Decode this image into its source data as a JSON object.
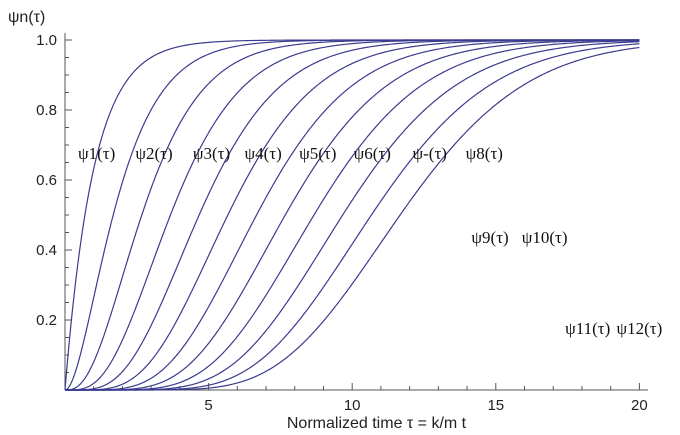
{
  "chart_data": {
    "type": "line",
    "title": "",
    "xlabel": "Normalized time τ = k/m t",
    "ylabel": "ψn(τ)",
    "xlim": [
      0,
      20.3
    ],
    "ylim": [
      0,
      1.02
    ],
    "xticks": [
      5,
      10,
      15,
      20
    ],
    "yticks": [
      0.2,
      0.4,
      0.6,
      0.8,
      1.0
    ],
    "xtick_labels": [
      "5",
      "10",
      "15",
      "20"
    ],
    "ytick_labels": [
      "0.2",
      "0.4",
      "0.6",
      "0.8",
      "1.0"
    ],
    "grid": false,
    "legend": "none",
    "line_color": "#3b3b8f",
    "model": "psi_n(tau) = regularized lower incomplete gamma P(n, tau), n = 1..12",
    "series": [
      {
        "name": "ψ1(τ)",
        "n": 1,
        "label_x": 1.1,
        "label_y": 0.66
      },
      {
        "name": "ψ2(τ)",
        "n": 2,
        "label_x": 3.1,
        "label_y": 0.66
      },
      {
        "name": "ψ3(τ)",
        "n": 3,
        "label_x": 5.1,
        "label_y": 0.66
      },
      {
        "name": "ψ4(τ)",
        "n": 4,
        "label_x": 6.9,
        "label_y": 0.66
      },
      {
        "name": "ψ5(τ)",
        "n": 5,
        "label_x": 8.8,
        "label_y": 0.66
      },
      {
        "name": "ψ6(τ)",
        "n": 6,
        "label_x": 10.7,
        "label_y": 0.66
      },
      {
        "name": "ψ-(τ)",
        "n": 7,
        "label_x": 12.7,
        "label_y": 0.66
      },
      {
        "name": "ψ8(τ)",
        "n": 8,
        "label_x": 14.6,
        "label_y": 0.66
      },
      {
        "name": "ψ9(τ)",
        "n": 9,
        "label_x": 14.8,
        "label_y": 0.42
      },
      {
        "name": "ψ10(τ)",
        "n": 10,
        "label_x": 16.7,
        "label_y": 0.42
      },
      {
        "name": "ψ11(τ)",
        "n": 11,
        "label_x": 18.2,
        "label_y": 0.16
      },
      {
        "name": "ψ12(τ)",
        "n": 12,
        "label_x": 20.0,
        "label_y": 0.16
      }
    ]
  }
}
